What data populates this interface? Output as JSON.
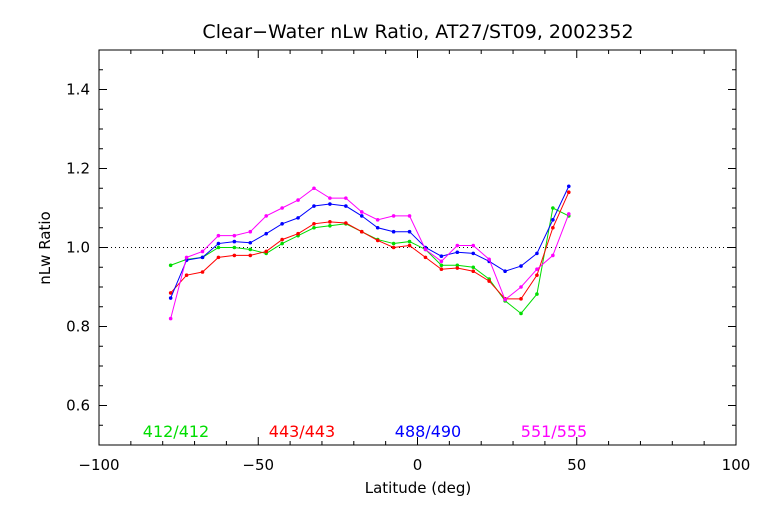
{
  "chart_data": {
    "type": "line",
    "title": "Clear−Water nLw Ratio, AT27/ST09, 2002352",
    "xlabel": "Latitude (deg)",
    "ylabel": "nLw Ratio",
    "xlim": [
      -100,
      100
    ],
    "ylim": [
      0.5,
      1.5
    ],
    "xticks": [
      "−100",
      "−50",
      "0",
      "50",
      "100"
    ],
    "yticks": [
      "0.6",
      "0.8",
      "1.0",
      "1.2",
      "1.4"
    ],
    "reference_line": 1.0,
    "grid": false,
    "legend_placement": "bottom, inside plot",
    "series": [
      {
        "name": "412/412",
        "color": "#00dd00",
        "x": [
          -77.5,
          -72.5,
          -67.5,
          -62.5,
          -57.5,
          -52.5,
          -47.5,
          -42.5,
          -37.5,
          -32.5,
          -27.5,
          -22.5,
          -17.5,
          -12.5,
          -7.5,
          -2.5,
          2.5,
          7.5,
          12.5,
          17.5,
          22.5,
          27.5,
          32.5,
          37.5,
          42.5,
          47.5
        ],
        "values": [
          0.955,
          0.97,
          0.975,
          1.0,
          1.0,
          0.995,
          0.985,
          1.01,
          1.03,
          1.05,
          1.055,
          1.06,
          1.04,
          1.02,
          1.01,
          1.015,
          0.995,
          0.955,
          0.955,
          0.95,
          0.92,
          0.865,
          0.833,
          0.882,
          1.1,
          1.08
        ]
      },
      {
        "name": "443/443",
        "color": "#ff0000",
        "x": [
          -77.5,
          -72.5,
          -67.5,
          -62.5,
          -57.5,
          -52.5,
          -47.5,
          -42.5,
          -37.5,
          -32.5,
          -27.5,
          -22.5,
          -17.5,
          -12.5,
          -7.5,
          -2.5,
          2.5,
          7.5,
          12.5,
          17.5,
          22.5,
          27.5,
          32.5,
          37.5,
          42.5,
          47.5
        ],
        "values": [
          0.885,
          0.93,
          0.938,
          0.975,
          0.98,
          0.98,
          0.99,
          1.02,
          1.035,
          1.06,
          1.065,
          1.062,
          1.04,
          1.018,
          1.0,
          1.005,
          0.975,
          0.945,
          0.948,
          0.94,
          0.915,
          0.87,
          0.87,
          0.93,
          1.05,
          1.14
        ]
      },
      {
        "name": "488/490",
        "color": "#0000ff",
        "x": [
          -77.5,
          -72.5,
          -67.5,
          -62.5,
          -57.5,
          -52.5,
          -47.5,
          -42.5,
          -37.5,
          -32.5,
          -27.5,
          -22.5,
          -17.5,
          -12.5,
          -7.5,
          -2.5,
          2.5,
          7.5,
          12.5,
          17.5,
          22.5,
          27.5,
          32.5,
          37.5,
          42.5,
          47.5
        ],
        "values": [
          0.872,
          0.968,
          0.975,
          1.01,
          1.015,
          1.012,
          1.035,
          1.06,
          1.075,
          1.105,
          1.11,
          1.105,
          1.08,
          1.05,
          1.04,
          1.04,
          1.0,
          0.978,
          0.988,
          0.985,
          0.965,
          0.94,
          0.953,
          0.985,
          1.07,
          1.155
        ]
      },
      {
        "name": "551/555",
        "color": "#ff00ff",
        "x": [
          -77.5,
          -72.5,
          -67.5,
          -62.5,
          -57.5,
          -52.5,
          -47.5,
          -42.5,
          -37.5,
          -32.5,
          -27.5,
          -22.5,
          -17.5,
          -12.5,
          -7.5,
          -2.5,
          2.5,
          7.5,
          12.5,
          17.5,
          22.5,
          27.5,
          32.5,
          37.5,
          42.5,
          47.5
        ],
        "values": [
          0.82,
          0.975,
          0.99,
          1.03,
          1.03,
          1.04,
          1.08,
          1.1,
          1.12,
          1.15,
          1.125,
          1.125,
          1.09,
          1.07,
          1.08,
          1.08,
          0.995,
          0.965,
          1.005,
          1.005,
          0.97,
          0.868,
          0.9,
          0.945,
          0.98,
          1.085
        ]
      }
    ]
  }
}
